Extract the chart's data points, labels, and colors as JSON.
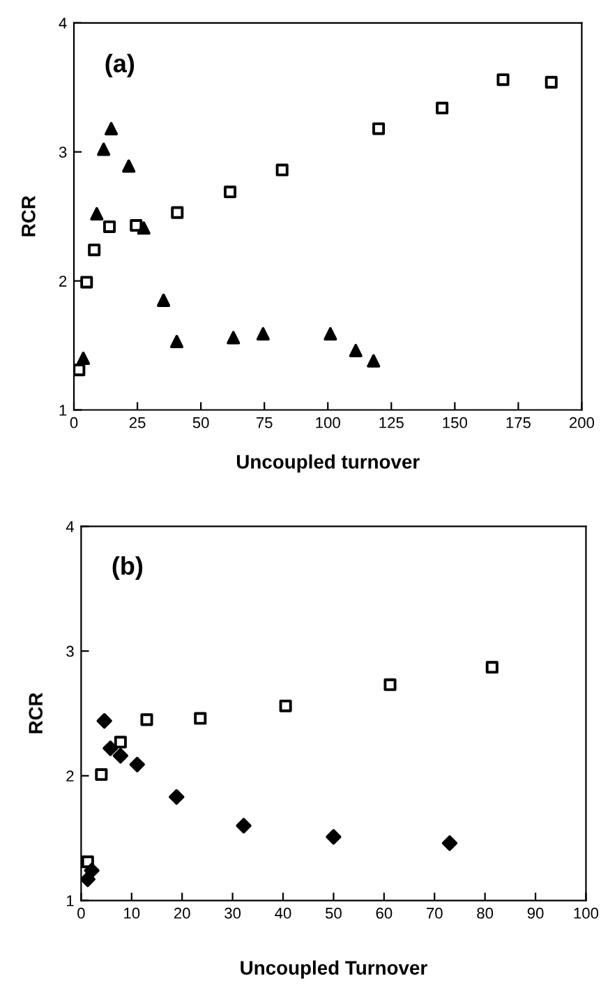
{
  "chart_data": [
    {
      "type": "scatter",
      "xlabel": "Uncoupled turnover",
      "ylabel": "RCR",
      "annotations": [
        "(a)"
      ],
      "xlim": [
        0,
        200
      ],
      "ylim": [
        1,
        4
      ],
      "xticks": [
        0,
        25,
        50,
        75,
        100,
        125,
        150,
        175,
        200
      ],
      "yticks": [
        1,
        2,
        3,
        4
      ],
      "grid": false,
      "legend": false,
      "series": [
        {
          "color": "#000000",
          "marker": "square",
          "x": [
            2,
            5,
            8,
            14,
            24.5,
            40.7,
            61.5,
            82,
            120,
            145,
            169,
            188
          ],
          "values": [
            1.31,
            1.99,
            2.24,
            2.42,
            2.43,
            2.53,
            2.69,
            2.86,
            3.18,
            3.34,
            3.56,
            3.54
          ]
        },
        {
          "color": "#000000",
          "marker": "triangle",
          "x": [
            3.7,
            9,
            11.7,
            14.7,
            21.6,
            27.5,
            35.3,
            40.5,
            62.8,
            74.5,
            101,
            111,
            118
          ],
          "values": [
            1.4,
            2.52,
            3.02,
            3.18,
            2.89,
            2.41,
            1.85,
            1.53,
            1.56,
            1.59,
            1.59,
            1.46,
            1.38
          ]
        }
      ]
    },
    {
      "type": "scatter",
      "xlabel": "Uncoupled Turnover",
      "ylabel": "RCR",
      "annotations": [
        "(b)"
      ],
      "xlim": [
        0,
        100
      ],
      "ylim": [
        1,
        4
      ],
      "xticks": [
        0,
        10,
        20,
        30,
        40,
        50,
        60,
        70,
        80,
        90,
        100
      ],
      "yticks": [
        1,
        2,
        3,
        4
      ],
      "grid": false,
      "legend": false,
      "series": [
        {
          "color": "#000000",
          "marker": "square",
          "x": [
            1.3,
            4,
            7.8,
            13,
            23.6,
            40.5,
            61.2,
            81.4
          ],
          "values": [
            1.31,
            2.01,
            2.27,
            2.45,
            2.46,
            2.56,
            2.73,
            2.87
          ]
        },
        {
          "color": "#000000",
          "marker": "diamond",
          "x": [
            1.3,
            2.1,
            4.6,
            5.8,
            7.8,
            11.1,
            18.9,
            32.2,
            50,
            73
          ],
          "values": [
            1.17,
            1.24,
            2.44,
            2.22,
            2.16,
            2.09,
            1.83,
            1.6,
            1.51,
            1.46
          ]
        }
      ]
    }
  ]
}
